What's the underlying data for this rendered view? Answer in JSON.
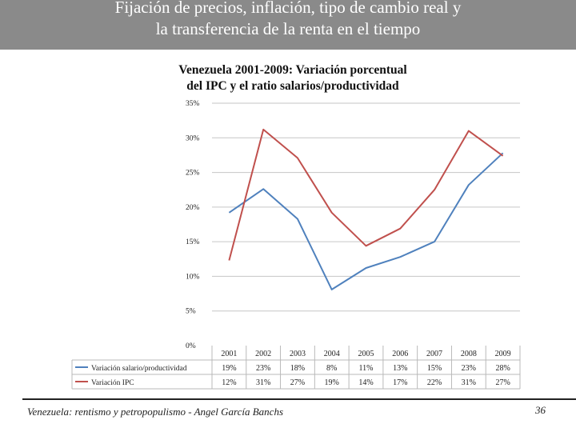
{
  "slide": {
    "title_line1": "Fijación de precios, inflación, tipo de cambio real y",
    "title_line2": "la transferencia de la renta en el tiempo",
    "footer_text": "Venezuela: rentismo y petropopulismo - Angel García Banchs",
    "page_number": "36",
    "header_color": "#8a8a8a"
  },
  "chart_data": {
    "type": "line",
    "title_line1": "Venezuela 2001-2009: Variación porcentual",
    "title_line2": "del IPC y el ratio salarios/productividad",
    "x": [
      "2001",
      "2002",
      "2003",
      "2004",
      "2005",
      "2006",
      "2007",
      "2008",
      "2009"
    ],
    "ylim": [
      0,
      35
    ],
    "yticks": [
      "0%",
      "5%",
      "10%",
      "15%",
      "20%",
      "25%",
      "30%",
      "35%"
    ],
    "grid": true,
    "series": [
      {
        "name": "Variación salario/productividad",
        "color": "#4f81bd",
        "values": [
          19.2,
          22.6,
          18.3,
          8.1,
          11.2,
          12.8,
          15.0,
          23.2,
          27.8
        ],
        "table_labels": [
          "19%",
          "23%",
          "18%",
          "8%",
          "11%",
          "13%",
          "15%",
          "23%",
          "28%"
        ]
      },
      {
        "name": "Variación IPC",
        "color": "#c0504d",
        "values": [
          12.3,
          31.2,
          27.1,
          19.2,
          14.4,
          16.9,
          22.5,
          31.0,
          27.4
        ],
        "table_labels": [
          "12%",
          "31%",
          "27%",
          "19%",
          "14%",
          "17%",
          "22%",
          "31%",
          "27%"
        ]
      }
    ]
  }
}
